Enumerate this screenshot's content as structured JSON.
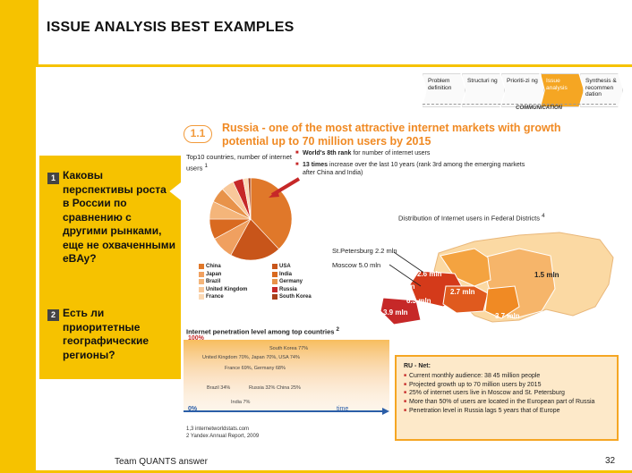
{
  "header": {
    "title": "ISSUE ANALYSIS BEST EXAMPLES"
  },
  "process": {
    "steps": [
      {
        "label": "Problem definition",
        "active": false
      },
      {
        "label": "Structuri ng",
        "active": false
      },
      {
        "label": "Prioriti-zi ng",
        "active": false
      },
      {
        "label": "Issue analysis",
        "active": true
      },
      {
        "label": "Synthesis & recommen dation",
        "active": false
      }
    ],
    "bar_label": "COMMUNICATION"
  },
  "slide": {
    "badge": "1.1",
    "headline": "Russia - one of the most attractive internet markets with growth potential up to 70 million users by 2015"
  },
  "questions": [
    {
      "num": "1",
      "text": "Каковы перспективы роста в России по сравнению с другими рынками, еще не охваченными eBAy?"
    },
    {
      "num": "2",
      "text": "Есть ли приоритетные географические регионы?"
    }
  ],
  "pie": {
    "title": "Top10 countries, number of internet users",
    "title_note": "1",
    "legend": [
      "China",
      "USA",
      "Japan",
      "India",
      "Brazil",
      "Germany",
      "United Kingdom",
      "Russia",
      "France",
      "South Korea"
    ],
    "legend_colors": [
      "#e0782a",
      "#c8551a",
      "#f0a060",
      "#d96a20",
      "#f4b57a",
      "#e8934a",
      "#f8c89a",
      "#c62828",
      "#fbd9b5",
      "#a8401a"
    ]
  },
  "facts": [
    {
      "bold": "World's 8th rank",
      "rest": " for number of internet users"
    },
    {
      "bold": "13 times",
      "rest": " increase over the last 10 years (rank 3rd among the emerging markets after China and India)"
    }
  ],
  "map": {
    "title": "Distribution of Internet users in Federal Districts",
    "title_note": "4",
    "callouts": [
      "St.Petersburg 2.2 mln",
      "Moscow 5.0 mln"
    ],
    "regions": [
      "2.6 mln",
      "6.0 mln",
      "6.3 mln",
      "2.7 mln",
      "1.5 mln",
      "3.7 mln",
      "3.9 mln"
    ]
  },
  "penetration": {
    "title": "Internet penetration level among top countries",
    "title_note": "2",
    "y_top": "100%",
    "y_bottom": "0%",
    "x_label": "time",
    "points": [
      "South Korea 77%",
      "United Kingdom 70%, Japan 70%, USA 74%",
      "France 69%, Germany 68%",
      "Brazil 34%",
      "Russia 32%",
      "China 25%",
      "India 7%"
    ],
    "sources": [
      "1,3 internetworldstats.com",
      "2 Yandex Annual Report, 2009"
    ]
  },
  "ru_box": {
    "title": "RU - Net:",
    "lines": [
      "Current monthly audience: 38 45 million people",
      "Projected growth up to 70 million users by 2015",
      "25% of internet users live in Moscow and St. Petersburg",
      "More than 50% of users are located in the European part of Russia",
      "Penetration level in Russia lags 5 years that of Europe"
    ]
  },
  "footer": {
    "text": "Team QUANTS answer",
    "page": "32"
  },
  "colors": {
    "accent": "#f6c200",
    "orange": "#f08a24",
    "red": "#c62828"
  }
}
